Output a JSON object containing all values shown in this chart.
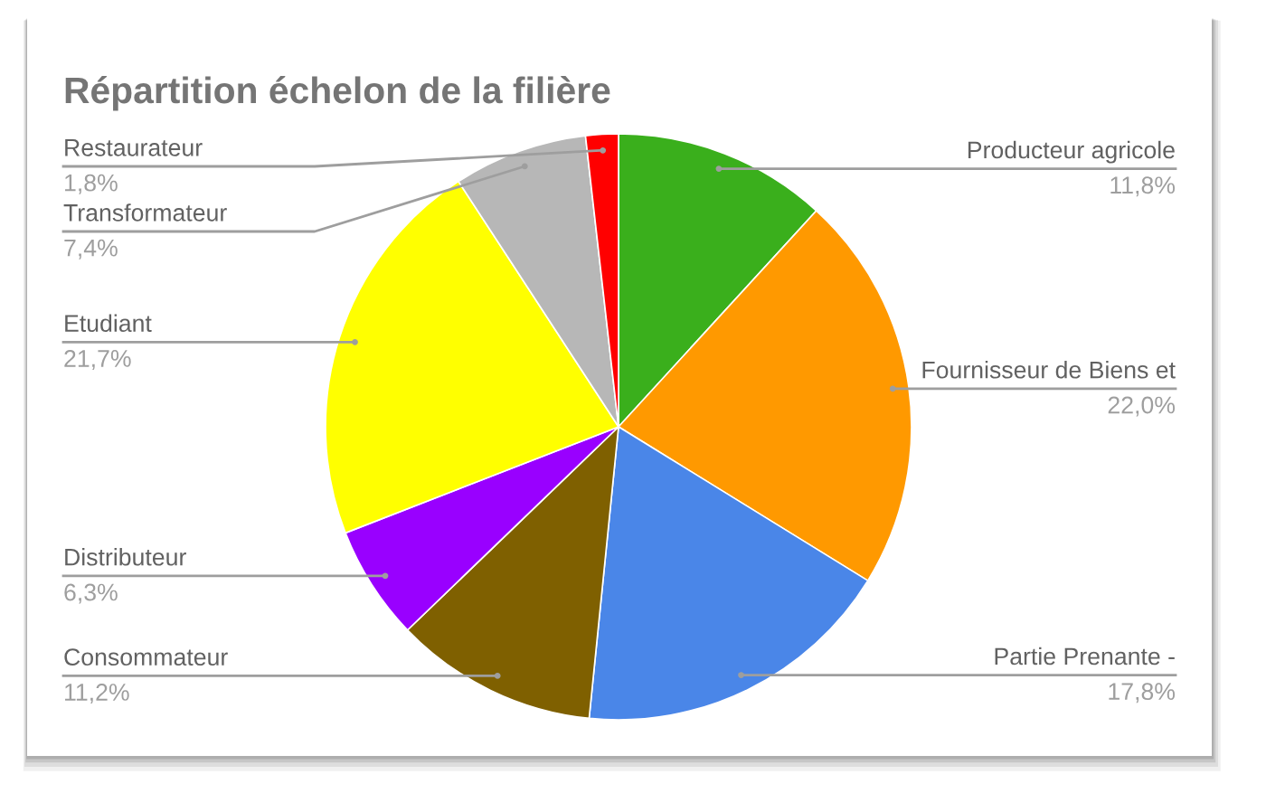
{
  "chart_data": {
    "type": "pie",
    "title": "Répartition échelon de la filière",
    "categories": [
      "Producteur agricole",
      "Fournisseur de Biens et",
      "Partie Prenante -",
      "Consommateur",
      "Distributeur",
      "Etudiant",
      "Transformateur",
      "Restaurateur"
    ],
    "values": [
      11.8,
      22.0,
      17.8,
      11.2,
      6.3,
      21.7,
      7.4,
      1.8
    ],
    "colors": [
      "#3aaf1c",
      "#ff9900",
      "#4a86e8",
      "#7f6000",
      "#9900ff",
      "#ffff00",
      "#b7b7b7",
      "#ff0000"
    ],
    "value_labels": [
      "11,8%",
      "22,0%",
      "17,8%",
      "11,2%",
      "6,3%",
      "21,7%",
      "7,4%",
      "1,8%"
    ]
  }
}
